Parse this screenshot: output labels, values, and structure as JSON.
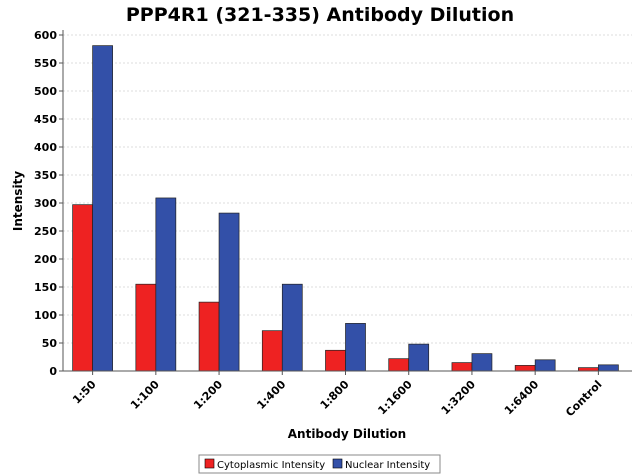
{
  "chart_data": {
    "type": "bar",
    "title": "PPP4R1 (321-335) Antibody Dilution",
    "xlabel": "Antibody Dilution",
    "ylabel": "Intensity",
    "categories": [
      "1:50",
      "1:100",
      "1:200",
      "1:400",
      "1:800",
      "1:1600",
      "1:3200",
      "1:6400",
      "Control"
    ],
    "series": [
      {
        "name": "Cytoplasmic Intensity",
        "color": "#ee2222",
        "values": [
          297,
          155,
          123,
          72,
          37,
          22,
          15,
          10,
          6
        ]
      },
      {
        "name": "Nuclear Intensity",
        "color": "#3350a8",
        "values": [
          581,
          309,
          282,
          155,
          85,
          48,
          31,
          20,
          11
        ]
      }
    ],
    "ylim": [
      0,
      600
    ],
    "yticks": [
      0,
      50,
      100,
      150,
      200,
      250,
      300,
      350,
      400,
      450,
      500,
      550,
      600
    ],
    "grid": true,
    "legend_position": "bottom-center"
  }
}
